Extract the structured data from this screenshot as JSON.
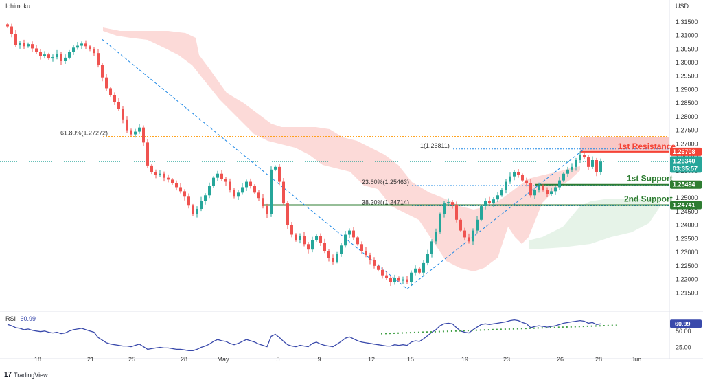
{
  "indicator_label": "Ichimoku",
  "currency_label": "USD",
  "rsi_label": "RSI",
  "rsi_value_text": "60.99",
  "brand": "TradingView",
  "colors": {
    "bull": "#26a69a",
    "bear": "#ef5350",
    "cloud_bear": "#fbd3d1",
    "cloud_bull": "#e3f2e6",
    "resistance": "#f44336",
    "support": "#2e7d32",
    "fib": "#1e88e5",
    "fib_orange": "#ff9800",
    "rsi_line": "#3949ab",
    "price_tag": "#26a69a"
  },
  "chart_data": {
    "type": "candlestick",
    "price_axis": {
      "ylim": [
        1.2095,
        1.3185
      ],
      "ticks": [
        "1.31500",
        "1.31000",
        "1.30500",
        "1.30000",
        "1.29500",
        "1.29000",
        "1.28500",
        "1.28000",
        "1.27500",
        "1.27000",
        "1.26500",
        "1.26000",
        "1.25500",
        "1.25000",
        "1.24500",
        "1.24000",
        "1.23500",
        "1.23000",
        "1.22500",
        "1.22000",
        "1.21500"
      ]
    },
    "x_axis": {
      "ticks": [
        "18",
        "21",
        "25",
        "28",
        "May",
        "5",
        "9",
        "12",
        "15",
        "19",
        "23",
        "26",
        "28",
        "Jun"
      ]
    },
    "current_price": "1.26340",
    "countdown": "03:35:57",
    "resistance": {
      "label": "1st Resistance",
      "price_text": "1.26708",
      "value": 1.26708,
      "zone_top": 1.2725
    },
    "supports": [
      {
        "label": "1st Support",
        "price_text": "1.25494",
        "value": 1.25494
      },
      {
        "label": "2nd Support",
        "price_text": "1.24741",
        "value": 1.24741
      }
    ],
    "fib_levels": [
      {
        "label": "61.80%(1.27272)",
        "value": 1.27272,
        "color": "orange"
      },
      {
        "label": "1(1.26811)",
        "value": 1.26811,
        "color": "blue"
      },
      {
        "label": "23.60%(1.25463)",
        "value": 1.25463,
        "color": "blue"
      },
      {
        "label": "38.20%(1.24714)",
        "value": 1.24714,
        "color": "blue"
      }
    ],
    "swings": {
      "high": 1.3085,
      "low": 1.2165,
      "recent_high": 1.2681
    },
    "closes": [
      1.3133,
      1.3105,
      1.3065,
      1.3072,
      1.306,
      1.3068,
      1.3052,
      1.304,
      1.3025,
      1.303,
      1.3015,
      1.302,
      1.3032,
      1.3005,
      1.3018,
      1.304,
      1.3055,
      1.3062,
      1.307,
      1.306,
      1.3048,
      1.3035,
      1.299,
      1.2945,
      1.2905,
      1.288,
      1.2855,
      1.283,
      1.279,
      1.275,
      1.2735,
      1.2745,
      1.276,
      1.2705,
      1.262,
      1.2595,
      1.2585,
      1.259,
      1.2575,
      1.2568,
      1.2555,
      1.254,
      1.2525,
      1.2505,
      1.2472,
      1.244,
      1.246,
      1.249,
      1.251,
      1.2545,
      1.2575,
      1.259,
      1.257,
      1.256,
      1.253,
      1.2505,
      1.252,
      1.254,
      1.256,
      1.2545,
      1.252,
      1.25,
      1.247,
      1.244,
      1.2605,
      1.2615,
      1.256,
      1.248,
      1.24,
      1.2365,
      1.2345,
      1.236,
      1.233,
      1.231,
      1.2345,
      1.236,
      1.2335,
      1.2305,
      1.228,
      1.2265,
      1.2295,
      1.2325,
      1.2365,
      1.238,
      1.2355,
      1.233,
      1.2305,
      1.229,
      1.227,
      1.225,
      1.2235,
      1.2215,
      1.2205,
      1.219,
      1.2205,
      1.2195,
      1.22,
      1.219,
      1.2225,
      1.224,
      1.2225,
      1.226,
      1.2295,
      1.234,
      1.2375,
      1.244,
      1.248,
      1.2485,
      1.2475,
      1.242,
      1.238,
      1.2355,
      1.234,
      1.238,
      1.242,
      1.247,
      1.249,
      1.248,
      1.2495,
      1.251,
      1.253,
      1.256,
      1.258,
      1.2595,
      1.2585,
      1.2565,
      1.2555,
      1.251,
      1.253,
      1.2545,
      1.253,
      1.2515,
      1.2525,
      1.254,
      1.2565,
      1.259,
      1.2605,
      1.2615,
      1.264,
      1.266,
      1.265,
      1.2615,
      1.264,
      1.2595,
      1.2634
    ],
    "rsi": {
      "ylim": [
        15,
        75
      ],
      "ticks": [
        "50.00",
        "25.00"
      ],
      "current": 60.99,
      "values": [
        60,
        58,
        55,
        54,
        52,
        53,
        51,
        50,
        49,
        50,
        48,
        47,
        48,
        46,
        47,
        50,
        52,
        53,
        54,
        52,
        50,
        48,
        40,
        36,
        32,
        30,
        29,
        28,
        27,
        27,
        26,
        28,
        30,
        26,
        22,
        23,
        24,
        25,
        24,
        24,
        23,
        22,
        22,
        21,
        20,
        20,
        22,
        25,
        27,
        30,
        34,
        37,
        35,
        34,
        31,
        29,
        31,
        34,
        37,
        35,
        33,
        30,
        28,
        26,
        42,
        45,
        40,
        34,
        29,
        27,
        26,
        28,
        27,
        26,
        31,
        33,
        30,
        28,
        27,
        26,
        30,
        34,
        39,
        41,
        38,
        35,
        33,
        32,
        31,
        30,
        29,
        28,
        27,
        27,
        29,
        28,
        29,
        28,
        33,
        35,
        34,
        38,
        43,
        48,
        52,
        58,
        61,
        62,
        61,
        55,
        50,
        48,
        47,
        52,
        56,
        60,
        61,
        60,
        61,
        62,
        63,
        64,
        66,
        67,
        66,
        63,
        61,
        55,
        57,
        58,
        57,
        56,
        57,
        58,
        60,
        62,
        63,
        64,
        65,
        66,
        65,
        62,
        63,
        60,
        61
      ],
      "trendline": [
        48,
        61
      ]
    }
  }
}
